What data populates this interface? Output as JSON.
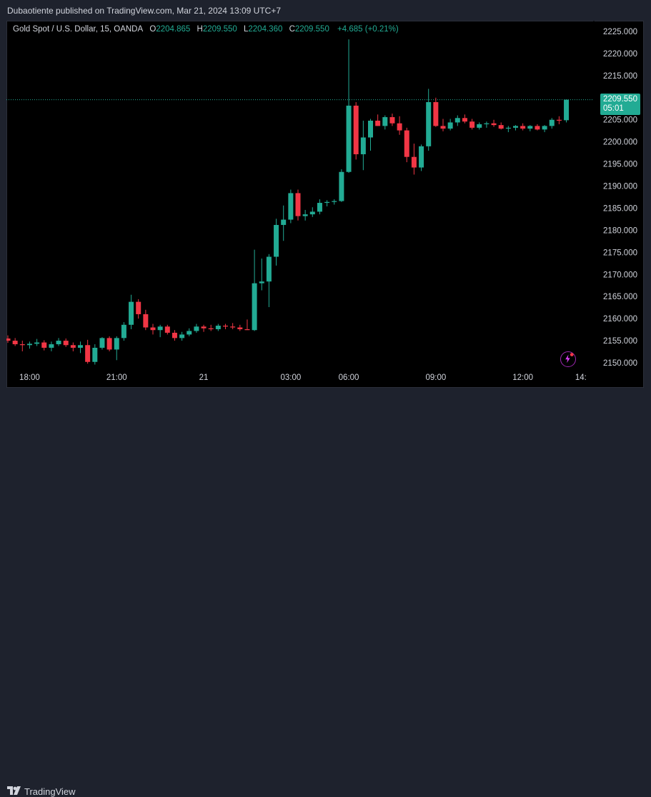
{
  "header": {
    "publisher": "Dubaotiente published on TradingView.com, Mar 21, 2024 13:09 UTC+7"
  },
  "legend": {
    "symbol": "Gold Spot / U.S. Dollar, 15, OANDA",
    "open_label": "O",
    "open": "2204.865",
    "high_label": "H",
    "high": "2209.550",
    "low_label": "L",
    "low": "2204.360",
    "close_label": "C",
    "close": "2209.550",
    "change": "+4.685 (+0.21%)"
  },
  "price_tag": {
    "price": "2209.550",
    "countdown": "05:01"
  },
  "footer": {
    "brand": "TradingView",
    "logo": "17"
  },
  "colors": {
    "up": "#22ab94",
    "down": "#f23645",
    "background": "#000000",
    "chrome": "#1e222d",
    "axis_text": "#d1d4dc"
  },
  "chart_data": {
    "type": "candlestick",
    "title": "Gold Spot / U.S. Dollar, 15, OANDA",
    "interval": "15",
    "yticks": [
      2150,
      2155,
      2160,
      2165,
      2170,
      2175,
      2180,
      2185,
      2190,
      2195,
      2200,
      2205,
      2210,
      2215,
      2220,
      2225
    ],
    "ylim": [
      2147,
      2227
    ],
    "x_tick_labels": [
      {
        "label": "18:00",
        "index": 3
      },
      {
        "label": "21:00",
        "index": 15
      },
      {
        "label": "21",
        "index": 27
      },
      {
        "label": "03:00",
        "index": 39
      },
      {
        "label": "06:00",
        "index": 47
      },
      {
        "label": "09:00",
        "index": 59
      },
      {
        "label": "12:00",
        "index": 71
      },
      {
        "label": "14:",
        "index": 79
      }
    ],
    "last_price_line": 2209.55,
    "candles": [
      {
        "o": 2155.5,
        "h": 2156.2,
        "l": 2154.5,
        "c": 2155.0
      },
      {
        "o": 2155.0,
        "h": 2155.6,
        "l": 2153.8,
        "c": 2154.2
      },
      {
        "o": 2154.2,
        "h": 2155.0,
        "l": 2152.6,
        "c": 2154.0
      },
      {
        "o": 2154.0,
        "h": 2154.8,
        "l": 2153.2,
        "c": 2154.3
      },
      {
        "o": 2154.3,
        "h": 2155.4,
        "l": 2153.8,
        "c": 2154.6
      },
      {
        "o": 2154.6,
        "h": 2155.1,
        "l": 2152.8,
        "c": 2153.4
      },
      {
        "o": 2153.4,
        "h": 2154.8,
        "l": 2152.6,
        "c": 2154.2
      },
      {
        "o": 2154.2,
        "h": 2155.6,
        "l": 2153.8,
        "c": 2155.0
      },
      {
        "o": 2155.0,
        "h": 2155.5,
        "l": 2153.6,
        "c": 2154.0
      },
      {
        "o": 2154.0,
        "h": 2154.6,
        "l": 2152.6,
        "c": 2153.4
      },
      {
        "o": 2153.4,
        "h": 2154.8,
        "l": 2152.2,
        "c": 2154.0
      },
      {
        "o": 2154.0,
        "h": 2155.2,
        "l": 2149.8,
        "c": 2150.2
      },
      {
        "o": 2150.2,
        "h": 2154.2,
        "l": 2149.6,
        "c": 2153.4
      },
      {
        "o": 2153.4,
        "h": 2155.8,
        "l": 2153.0,
        "c": 2155.6
      },
      {
        "o": 2155.6,
        "h": 2156.0,
        "l": 2152.6,
        "c": 2153.0
      },
      {
        "o": 2153.0,
        "h": 2156.0,
        "l": 2150.6,
        "c": 2155.6
      },
      {
        "o": 2155.6,
        "h": 2159.2,
        "l": 2155.0,
        "c": 2158.6
      },
      {
        "o": 2158.6,
        "h": 2165.4,
        "l": 2157.6,
        "c": 2163.8
      },
      {
        "o": 2163.8,
        "h": 2164.4,
        "l": 2160.0,
        "c": 2161.0
      },
      {
        "o": 2161.0,
        "h": 2162.0,
        "l": 2157.4,
        "c": 2158.0
      },
      {
        "o": 2158.0,
        "h": 2158.8,
        "l": 2156.4,
        "c": 2157.4
      },
      {
        "o": 2157.4,
        "h": 2158.6,
        "l": 2155.8,
        "c": 2158.2
      },
      {
        "o": 2158.2,
        "h": 2158.6,
        "l": 2156.4,
        "c": 2156.8
      },
      {
        "o": 2156.8,
        "h": 2157.4,
        "l": 2155.0,
        "c": 2155.6
      },
      {
        "o": 2155.6,
        "h": 2157.0,
        "l": 2155.0,
        "c": 2156.4
      },
      {
        "o": 2156.4,
        "h": 2157.8,
        "l": 2156.0,
        "c": 2157.2
      },
      {
        "o": 2157.2,
        "h": 2158.8,
        "l": 2156.8,
        "c": 2158.2
      },
      {
        "o": 2158.2,
        "h": 2158.6,
        "l": 2157.0,
        "c": 2157.8
      },
      {
        "o": 2157.8,
        "h": 2158.6,
        "l": 2157.2,
        "c": 2157.6
      },
      {
        "o": 2157.6,
        "h": 2158.8,
        "l": 2157.2,
        "c": 2158.4
      },
      {
        "o": 2158.4,
        "h": 2158.8,
        "l": 2157.6,
        "c": 2158.2
      },
      {
        "o": 2158.2,
        "h": 2159.0,
        "l": 2157.6,
        "c": 2158.0
      },
      {
        "o": 2158.0,
        "h": 2158.6,
        "l": 2157.2,
        "c": 2157.6
      },
      {
        "o": 2157.6,
        "h": 2159.8,
        "l": 2157.4,
        "c": 2157.4
      },
      {
        "o": 2157.4,
        "h": 2175.6,
        "l": 2157.2,
        "c": 2168.0
      },
      {
        "o": 2168.0,
        "h": 2173.6,
        "l": 2166.4,
        "c": 2168.4
      },
      {
        "o": 2168.4,
        "h": 2174.6,
        "l": 2162.6,
        "c": 2174.0
      },
      {
        "o": 2174.0,
        "h": 2182.6,
        "l": 2172.0,
        "c": 2181.2
      },
      {
        "o": 2181.2,
        "h": 2185.6,
        "l": 2177.6,
        "c": 2182.4
      },
      {
        "o": 2182.4,
        "h": 2189.2,
        "l": 2181.6,
        "c": 2188.4
      },
      {
        "o": 2188.4,
        "h": 2189.2,
        "l": 2182.2,
        "c": 2183.2
      },
      {
        "o": 2183.2,
        "h": 2184.6,
        "l": 2182.2,
        "c": 2183.6
      },
      {
        "o": 2183.6,
        "h": 2185.2,
        "l": 2183.0,
        "c": 2184.2
      },
      {
        "o": 2184.2,
        "h": 2187.0,
        "l": 2183.6,
        "c": 2186.2
      },
      {
        "o": 2186.2,
        "h": 2186.8,
        "l": 2185.4,
        "c": 2186.4
      },
      {
        "o": 2186.4,
        "h": 2187.0,
        "l": 2185.8,
        "c": 2186.6
      },
      {
        "o": 2186.6,
        "h": 2193.8,
        "l": 2186.4,
        "c": 2193.2
      },
      {
        "o": 2193.2,
        "h": 2223.2,
        "l": 2193.0,
        "c": 2208.2
      },
      {
        "o": 2208.2,
        "h": 2209.0,
        "l": 2196.0,
        "c": 2197.2
      },
      {
        "o": 2197.2,
        "h": 2204.8,
        "l": 2193.6,
        "c": 2201.0
      },
      {
        "o": 2201.0,
        "h": 2205.2,
        "l": 2198.0,
        "c": 2204.8
      },
      {
        "o": 2204.8,
        "h": 2206.2,
        "l": 2203.6,
        "c": 2203.6
      },
      {
        "o": 2203.6,
        "h": 2206.0,
        "l": 2202.8,
        "c": 2205.6
      },
      {
        "o": 2205.6,
        "h": 2206.4,
        "l": 2203.6,
        "c": 2204.2
      },
      {
        "o": 2204.2,
        "h": 2205.8,
        "l": 2201.6,
        "c": 2202.6
      },
      {
        "o": 2202.6,
        "h": 2203.2,
        "l": 2195.4,
        "c": 2196.6
      },
      {
        "o": 2196.6,
        "h": 2199.6,
        "l": 2192.6,
        "c": 2194.2
      },
      {
        "o": 2194.2,
        "h": 2199.4,
        "l": 2193.4,
        "c": 2199.0
      },
      {
        "o": 2199.0,
        "h": 2212.0,
        "l": 2198.0,
        "c": 2209.0
      },
      {
        "o": 2209.0,
        "h": 2210.0,
        "l": 2203.4,
        "c": 2203.6
      },
      {
        "o": 2203.6,
        "h": 2205.2,
        "l": 2202.4,
        "c": 2203.0
      },
      {
        "o": 2203.0,
        "h": 2205.2,
        "l": 2202.6,
        "c": 2204.4
      },
      {
        "o": 2204.4,
        "h": 2206.0,
        "l": 2203.6,
        "c": 2205.4
      },
      {
        "o": 2205.4,
        "h": 2206.2,
        "l": 2204.2,
        "c": 2204.6
      },
      {
        "o": 2204.6,
        "h": 2205.2,
        "l": 2202.8,
        "c": 2203.2
      },
      {
        "o": 2203.2,
        "h": 2204.4,
        "l": 2202.8,
        "c": 2204.0
      },
      {
        "o": 2204.0,
        "h": 2204.6,
        "l": 2203.2,
        "c": 2204.2
      },
      {
        "o": 2204.2,
        "h": 2205.0,
        "l": 2203.4,
        "c": 2203.8
      },
      {
        "o": 2203.8,
        "h": 2204.4,
        "l": 2202.8,
        "c": 2203.0
      },
      {
        "o": 2203.0,
        "h": 2203.6,
        "l": 2202.2,
        "c": 2203.2
      },
      {
        "o": 2203.2,
        "h": 2203.8,
        "l": 2202.6,
        "c": 2203.6
      },
      {
        "o": 2203.6,
        "h": 2204.2,
        "l": 2202.6,
        "c": 2203.0
      },
      {
        "o": 2203.0,
        "h": 2203.8,
        "l": 2202.4,
        "c": 2203.6
      },
      {
        "o": 2203.6,
        "h": 2204.0,
        "l": 2202.6,
        "c": 2202.8
      },
      {
        "o": 2202.8,
        "h": 2203.8,
        "l": 2202.2,
        "c": 2203.6
      },
      {
        "o": 2203.6,
        "h": 2205.4,
        "l": 2203.0,
        "c": 2205.0
      },
      {
        "o": 2205.0,
        "h": 2205.8,
        "l": 2204.0,
        "c": 2204.8
      },
      {
        "o": 2204.9,
        "h": 2209.6,
        "l": 2204.4,
        "c": 2209.55
      }
    ]
  }
}
